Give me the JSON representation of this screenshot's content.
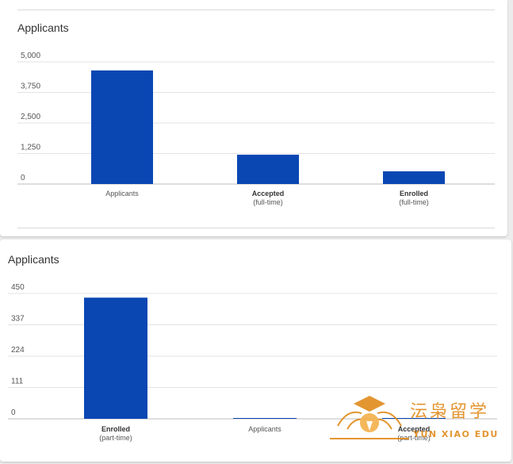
{
  "charts": [
    {
      "title": "Applicants",
      "chart_data": {
        "type": "bar",
        "title": "Applicants",
        "ylim": [
          0,
          5000
        ],
        "yticks": [
          "5,000",
          "3,750",
          "2,500",
          "1,250",
          "0"
        ],
        "categories": [
          {
            "label": "Applicants",
            "sub": ""
          },
          {
            "label": "Accepted",
            "sub": "(full-time)"
          },
          {
            "label": "Enrolled",
            "sub": "(full-time)"
          }
        ],
        "values": [
          4650,
          1200,
          520
        ],
        "color": "#0a47b3"
      }
    },
    {
      "title": "Applicants",
      "chart_data": {
        "type": "bar",
        "title": "Applicants",
        "ylim": [
          0,
          450
        ],
        "yticks": [
          "450",
          "337",
          "224",
          "111",
          "0"
        ],
        "categories": [
          {
            "label": "Enrolled",
            "sub": "(part-time)"
          },
          {
            "label": "Applicants",
            "sub": ""
          },
          {
            "label": "Accepted",
            "sub": "(part-time)"
          }
        ],
        "values": [
          435,
          2,
          2
        ],
        "color": "#0a47b3"
      }
    }
  ],
  "watermark": {
    "chinese": "沄枭留学",
    "english": "YUN XIAO EDU",
    "icon": "graduation-cap-logo"
  }
}
